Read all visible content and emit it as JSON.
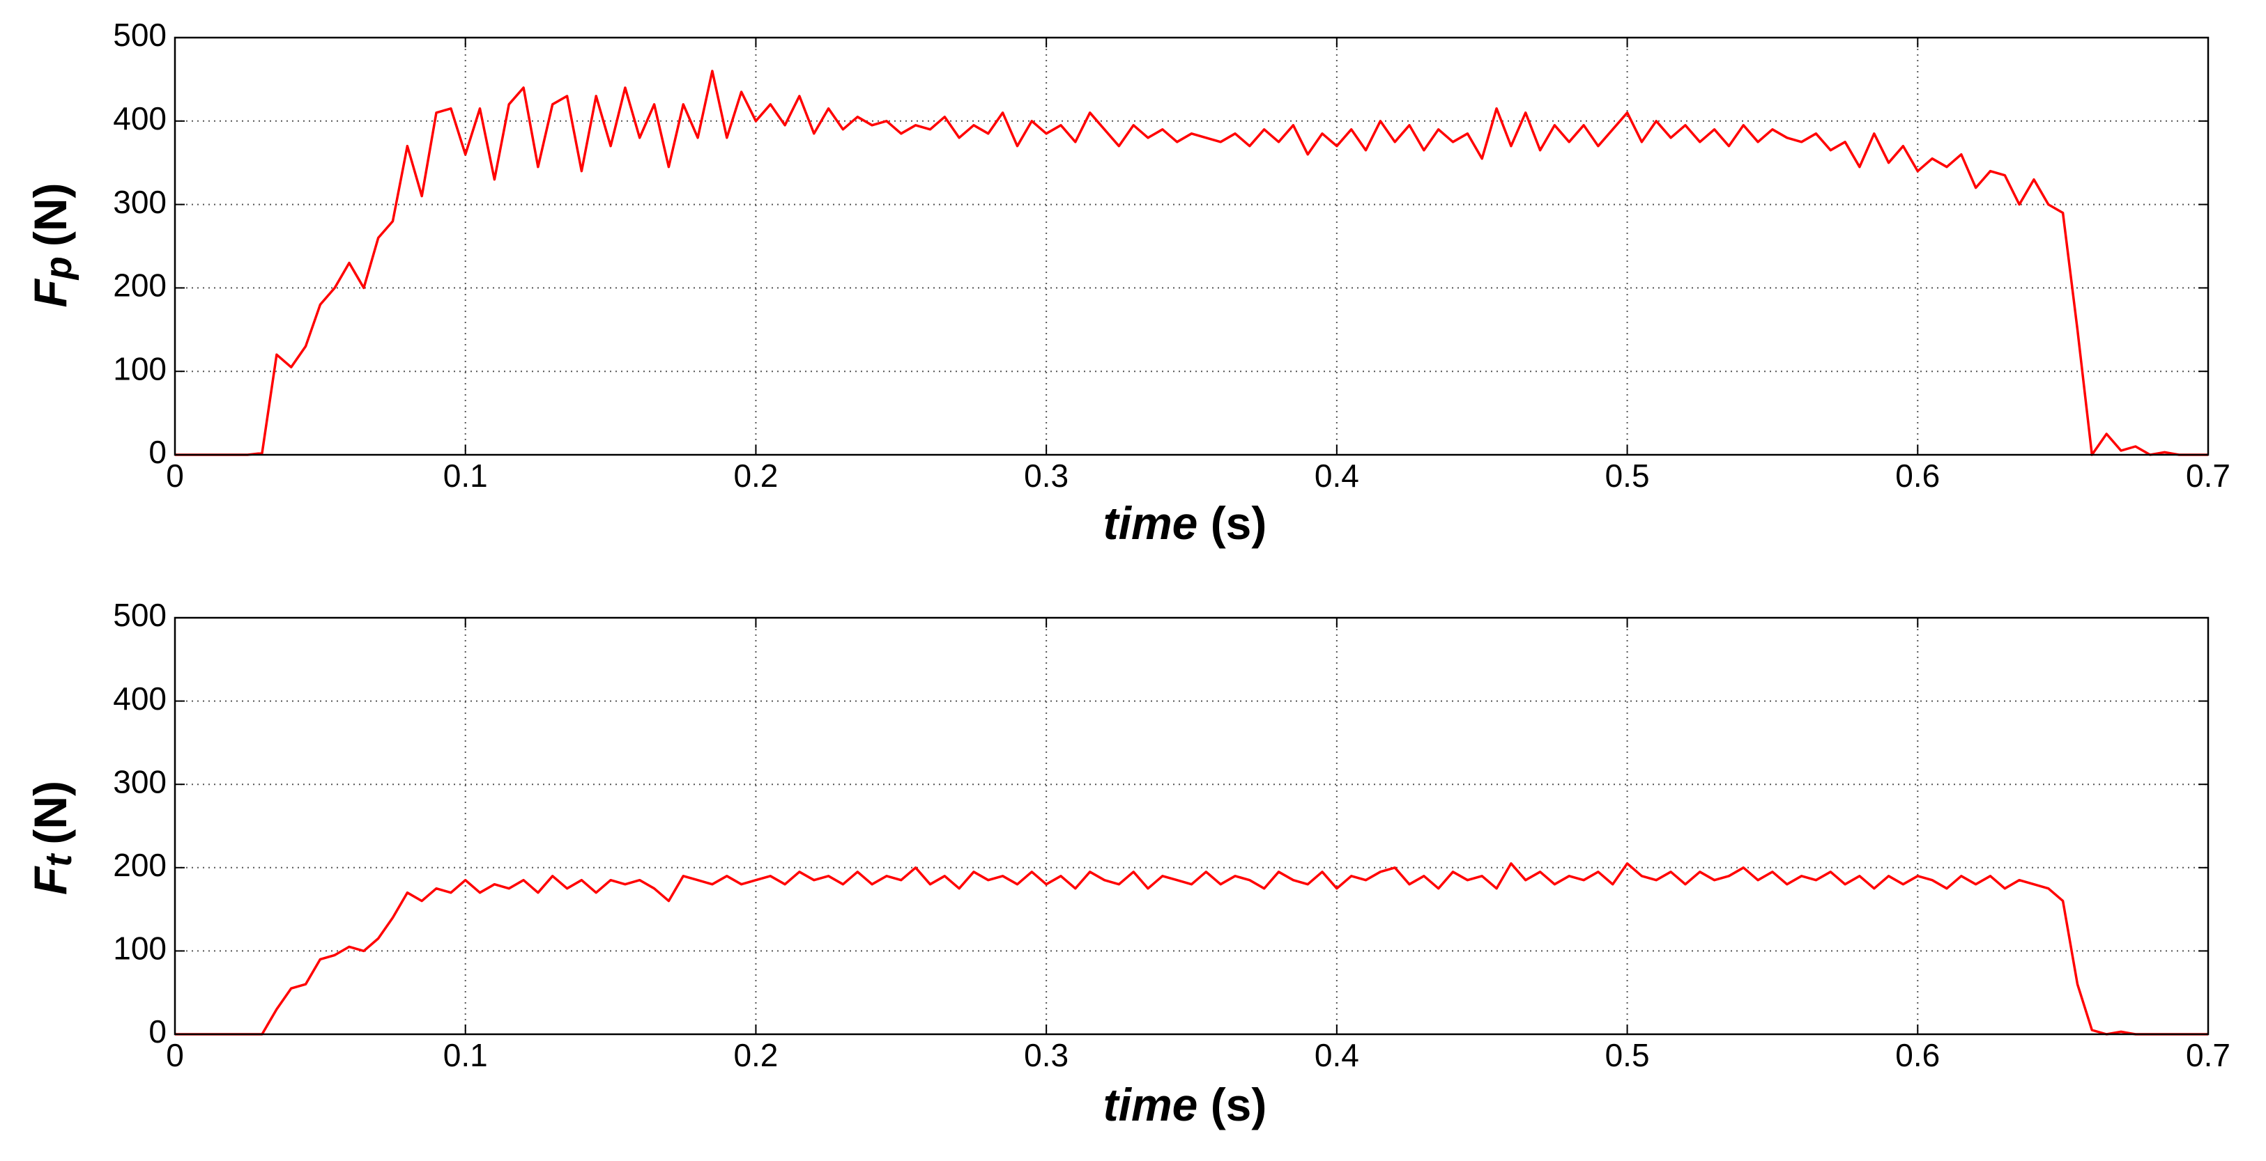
{
  "chart_data": [
    {
      "type": "line",
      "color": "#ff0000",
      "grid": true,
      "ylabel_symbol": "F",
      "ylabel_subscript": "p",
      "ylabel_unit": "(N)",
      "xlabel_var": "time",
      "xlabel_unit": "(s)",
      "xlim": [
        0,
        0.7
      ],
      "ylim": [
        0,
        500
      ],
      "xticks": [
        0,
        0.1,
        0.2,
        0.3,
        0.4,
        0.5,
        0.6,
        0.7
      ],
      "yticks": [
        0,
        100,
        200,
        300,
        400,
        500
      ],
      "x": [
        0,
        0.005,
        0.01,
        0.015,
        0.02,
        0.025,
        0.03,
        0.035,
        0.04,
        0.045,
        0.05,
        0.055,
        0.06,
        0.065,
        0.07,
        0.075,
        0.08,
        0.085,
        0.09,
        0.095,
        0.1,
        0.105,
        0.11,
        0.115,
        0.12,
        0.125,
        0.13,
        0.135,
        0.14,
        0.145,
        0.15,
        0.155,
        0.16,
        0.165,
        0.17,
        0.175,
        0.18,
        0.185,
        0.19,
        0.195,
        0.2,
        0.205,
        0.21,
        0.215,
        0.22,
        0.225,
        0.23,
        0.235,
        0.24,
        0.245,
        0.25,
        0.255,
        0.26,
        0.265,
        0.27,
        0.275,
        0.28,
        0.285,
        0.29,
        0.295,
        0.3,
        0.305,
        0.31,
        0.315,
        0.32,
        0.325,
        0.33,
        0.335,
        0.34,
        0.345,
        0.35,
        0.355,
        0.36,
        0.365,
        0.37,
        0.375,
        0.38,
        0.385,
        0.39,
        0.395,
        0.4,
        0.405,
        0.41,
        0.415,
        0.42,
        0.425,
        0.43,
        0.435,
        0.44,
        0.445,
        0.45,
        0.455,
        0.46,
        0.465,
        0.47,
        0.475,
        0.48,
        0.485,
        0.49,
        0.495,
        0.5,
        0.505,
        0.51,
        0.515,
        0.52,
        0.525,
        0.53,
        0.535,
        0.54,
        0.545,
        0.55,
        0.555,
        0.56,
        0.565,
        0.57,
        0.575,
        0.58,
        0.585,
        0.59,
        0.595,
        0.6,
        0.605,
        0.61,
        0.615,
        0.62,
        0.625,
        0.63,
        0.635,
        0.64,
        0.645,
        0.65,
        0.655,
        0.66,
        0.665,
        0.67,
        0.675,
        0.68,
        0.685,
        0.69,
        0.695,
        0.7
      ],
      "values": [
        0,
        0,
        0,
        0,
        0,
        0,
        2,
        120,
        105,
        130,
        180,
        200,
        230,
        200,
        260,
        280,
        370,
        310,
        410,
        415,
        360,
        415,
        330,
        420,
        440,
        345,
        420,
        430,
        340,
        430,
        370,
        440,
        380,
        420,
        345,
        420,
        380,
        460,
        380,
        435,
        400,
        420,
        395,
        430,
        385,
        415,
        390,
        405,
        395,
        400,
        385,
        395,
        390,
        405,
        380,
        395,
        385,
        410,
        370,
        400,
        385,
        395,
        375,
        410,
        390,
        370,
        395,
        380,
        390,
        375,
        385,
        380,
        375,
        385,
        370,
        390,
        375,
        395,
        360,
        385,
        370,
        390,
        365,
        400,
        375,
        395,
        365,
        390,
        375,
        385,
        355,
        415,
        370,
        410,
        365,
        395,
        375,
        395,
        370,
        390,
        410,
        375,
        400,
        380,
        395,
        375,
        390,
        370,
        395,
        375,
        390,
        380,
        375,
        385,
        365,
        375,
        345,
        385,
        350,
        370,
        340,
        355,
        345,
        360,
        320,
        340,
        335,
        300,
        330,
        300,
        290,
        150,
        0,
        25,
        5,
        10,
        0,
        3,
        0,
        0,
        0
      ]
    },
    {
      "type": "line",
      "color": "#ff0000",
      "grid": true,
      "ylabel_symbol": "F",
      "ylabel_subscript": "t",
      "ylabel_unit": "(N)",
      "xlabel_var": "time",
      "xlabel_unit": "(s)",
      "xlim": [
        0,
        0.7
      ],
      "ylim": [
        0,
        500
      ],
      "xticks": [
        0,
        0.1,
        0.2,
        0.3,
        0.4,
        0.5,
        0.6,
        0.7
      ],
      "yticks": [
        0,
        100,
        200,
        300,
        400,
        500
      ],
      "x": [
        0,
        0.005,
        0.01,
        0.015,
        0.02,
        0.025,
        0.03,
        0.035,
        0.04,
        0.045,
        0.05,
        0.055,
        0.06,
        0.065,
        0.07,
        0.075,
        0.08,
        0.085,
        0.09,
        0.095,
        0.1,
        0.105,
        0.11,
        0.115,
        0.12,
        0.125,
        0.13,
        0.135,
        0.14,
        0.145,
        0.15,
        0.155,
        0.16,
        0.165,
        0.17,
        0.175,
        0.18,
        0.185,
        0.19,
        0.195,
        0.2,
        0.205,
        0.21,
        0.215,
        0.22,
        0.225,
        0.23,
        0.235,
        0.24,
        0.245,
        0.25,
        0.255,
        0.26,
        0.265,
        0.27,
        0.275,
        0.28,
        0.285,
        0.29,
        0.295,
        0.3,
        0.305,
        0.31,
        0.315,
        0.32,
        0.325,
        0.33,
        0.335,
        0.34,
        0.345,
        0.35,
        0.355,
        0.36,
        0.365,
        0.37,
        0.375,
        0.38,
        0.385,
        0.39,
        0.395,
        0.4,
        0.405,
        0.41,
        0.415,
        0.42,
        0.425,
        0.43,
        0.435,
        0.44,
        0.445,
        0.45,
        0.455,
        0.46,
        0.465,
        0.47,
        0.475,
        0.48,
        0.485,
        0.49,
        0.495,
        0.5,
        0.505,
        0.51,
        0.515,
        0.52,
        0.525,
        0.53,
        0.535,
        0.54,
        0.545,
        0.55,
        0.555,
        0.56,
        0.565,
        0.57,
        0.575,
        0.58,
        0.585,
        0.59,
        0.595,
        0.6,
        0.605,
        0.61,
        0.615,
        0.62,
        0.625,
        0.63,
        0.635,
        0.64,
        0.645,
        0.65,
        0.655,
        0.66,
        0.665,
        0.67,
        0.675,
        0.68,
        0.685,
        0.69,
        0.695,
        0.7
      ],
      "values": [
        0,
        0,
        0,
        0,
        0,
        0,
        0,
        30,
        55,
        60,
        90,
        95,
        105,
        100,
        115,
        140,
        170,
        160,
        175,
        170,
        185,
        170,
        180,
        175,
        185,
        170,
        190,
        175,
        185,
        170,
        185,
        180,
        185,
        175,
        160,
        190,
        185,
        180,
        190,
        180,
        185,
        190,
        180,
        195,
        185,
        190,
        180,
        195,
        180,
        190,
        185,
        200,
        180,
        190,
        175,
        195,
        185,
        190,
        180,
        195,
        180,
        190,
        175,
        195,
        185,
        180,
        195,
        175,
        190,
        185,
        180,
        195,
        180,
        190,
        185,
        175,
        195,
        185,
        180,
        195,
        175,
        190,
        185,
        195,
        200,
        180,
        190,
        175,
        195,
        185,
        190,
        175,
        205,
        185,
        195,
        180,
        190,
        185,
        195,
        180,
        205,
        190,
        185,
        195,
        180,
        195,
        185,
        190,
        200,
        185,
        195,
        180,
        190,
        185,
        195,
        180,
        190,
        175,
        190,
        180,
        190,
        185,
        175,
        190,
        180,
        190,
        175,
        185,
        180,
        175,
        160,
        60,
        5,
        0,
        3,
        0,
        0,
        0,
        0,
        0,
        0
      ]
    }
  ]
}
